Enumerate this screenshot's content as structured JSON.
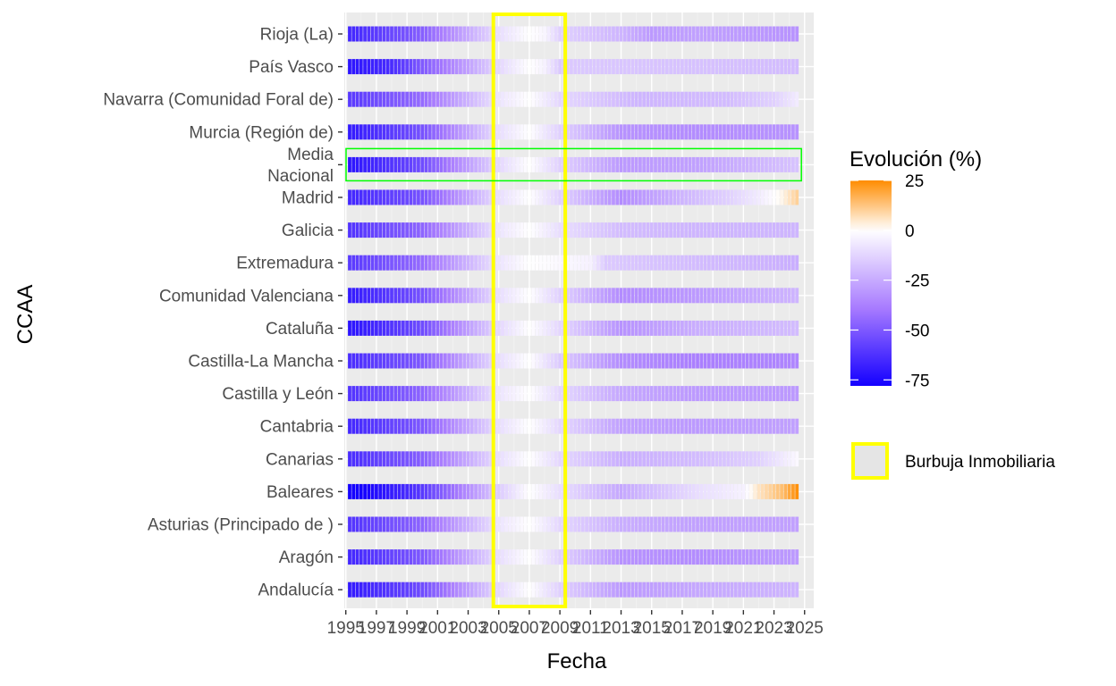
{
  "chart_data": {
    "type": "heatmap",
    "xlabel": "Fecha",
    "ylabel": "CCAA",
    "x_ticks": [
      "1995",
      "1997",
      "1999",
      "2001",
      "2003",
      "2005",
      "2007",
      "2009",
      "2011",
      "2013",
      "2015",
      "2017",
      "2019",
      "2021",
      "2023",
      "2025"
    ],
    "xlim": [
      1994.9,
      2025.6
    ],
    "x_start": 1995.25,
    "x_end": 2024.5,
    "x_step": 0.25,
    "categories": [
      "Rioja (La)",
      "País Vasco",
      "Navarra (Comunidad Foral de)",
      "Murcia (Región de)",
      "Media\nNacional",
      "Madrid",
      "Galicia",
      "Extremadura",
      "Comunidad Valenciana",
      "Cataluña",
      "Castilla-La Mancha",
      "Castilla y León",
      "Cantabria",
      "Canarias",
      "Baleares",
      "Asturias (Principado de )",
      "Aragón",
      "Andalucía"
    ],
    "category_lines": [
      [
        "Rioja (La)"
      ],
      [
        "País Vasco"
      ],
      [
        "Navarra (Comunidad Foral de)"
      ],
      [
        "Murcia (Región de)"
      ],
      [
        "Media",
        "Nacional"
      ],
      [
        "Madrid"
      ],
      [
        "Galicia"
      ],
      [
        "Extremadura"
      ],
      [
        "Comunidad Valenciana"
      ],
      [
        "Cataluña"
      ],
      [
        "Castilla-La Mancha"
      ],
      [
        "Castilla y León"
      ],
      [
        "Cantabria"
      ],
      [
        "Canarias"
      ],
      [
        "Baleares"
      ],
      [
        "Asturias (Principado de )"
      ],
      [
        "Aragón"
      ],
      [
        "Andalucía"
      ]
    ],
    "series": [
      {
        "name": "Rioja (La)",
        "knots": [
          [
            1995.25,
            -66
          ],
          [
            2000,
            -48
          ],
          [
            2005,
            -10
          ],
          [
            2007,
            0
          ],
          [
            2008,
            -3
          ],
          [
            2009,
            -14
          ],
          [
            2013,
            -22
          ],
          [
            2015,
            -30
          ],
          [
            2018,
            -28
          ],
          [
            2024.5,
            -32
          ]
        ]
      },
      {
        "name": "País Vasco",
        "knots": [
          [
            1995.25,
            -72
          ],
          [
            1998,
            -64
          ],
          [
            2003,
            -28
          ],
          [
            2005,
            -12
          ],
          [
            2007,
            0
          ],
          [
            2008,
            -4
          ],
          [
            2009,
            -16
          ],
          [
            2024.5,
            -20
          ]
        ]
      },
      {
        "name": "Navarra (Comunidad Foral de)",
        "knots": [
          [
            1995.25,
            -60
          ],
          [
            2000,
            -44
          ],
          [
            2005,
            -8
          ],
          [
            2007,
            0
          ],
          [
            2009,
            -12
          ],
          [
            2014,
            -22
          ],
          [
            2020,
            -20
          ],
          [
            2023,
            -14
          ],
          [
            2024.5,
            -6
          ]
        ]
      },
      {
        "name": "Murcia (Región de)",
        "knots": [
          [
            1995.25,
            -70
          ],
          [
            2000,
            -52
          ],
          [
            2005,
            -10
          ],
          [
            2007,
            0
          ],
          [
            2009,
            -14
          ],
          [
            2013,
            -32
          ],
          [
            2018,
            -34
          ],
          [
            2024.5,
            -32
          ]
        ]
      },
      {
        "name": "Media Nacional",
        "knots": [
          [
            1995.25,
            -72
          ],
          [
            2000,
            -54
          ],
          [
            2005,
            -12
          ],
          [
            2007,
            0
          ],
          [
            2009,
            -14
          ],
          [
            2013,
            -30
          ],
          [
            2018,
            -28
          ],
          [
            2024.5,
            -18
          ]
        ]
      },
      {
        "name": "Madrid",
        "knots": [
          [
            1995.25,
            -66
          ],
          [
            2000,
            -52
          ],
          [
            2005,
            -10
          ],
          [
            2007,
            0
          ],
          [
            2009,
            -14
          ],
          [
            2013,
            -34
          ],
          [
            2017,
            -22
          ],
          [
            2020,
            -14
          ],
          [
            2022,
            -6
          ],
          [
            2023.5,
            2
          ],
          [
            2024.5,
            10
          ]
        ]
      },
      {
        "name": "Galicia",
        "knots": [
          [
            1995.25,
            -62
          ],
          [
            2000,
            -46
          ],
          [
            2005,
            -8
          ],
          [
            2007,
            0
          ],
          [
            2009,
            -10
          ],
          [
            2013,
            -20
          ],
          [
            2018,
            -22
          ],
          [
            2024.5,
            -22
          ]
        ]
      },
      {
        "name": "Extremadura",
        "knots": [
          [
            1995.25,
            -60
          ],
          [
            2000,
            -44
          ],
          [
            2005,
            -8
          ],
          [
            2007,
            0
          ],
          [
            2011,
            -4
          ],
          [
            2012,
            -16
          ],
          [
            2018,
            -20
          ],
          [
            2024.5,
            -24
          ]
        ]
      },
      {
        "name": "Comunidad Valenciana",
        "knots": [
          [
            1995.25,
            -70
          ],
          [
            2000,
            -52
          ],
          [
            2005,
            -10
          ],
          [
            2007,
            0
          ],
          [
            2009,
            -14
          ],
          [
            2013,
            -34
          ],
          [
            2018,
            -30
          ],
          [
            2024.5,
            -22
          ]
        ]
      },
      {
        "name": "Cataluña",
        "knots": [
          [
            1995.25,
            -72
          ],
          [
            2000,
            -54
          ],
          [
            2005,
            -12
          ],
          [
            2007,
            0
          ],
          [
            2009,
            -12
          ],
          [
            2013,
            -32
          ],
          [
            2018,
            -24
          ],
          [
            2024.5,
            -20
          ]
        ]
      },
      {
        "name": "Castilla-La Mancha",
        "knots": [
          [
            1995.25,
            -64
          ],
          [
            2000,
            -50
          ],
          [
            2005,
            -10
          ],
          [
            2007,
            0
          ],
          [
            2009,
            -16
          ],
          [
            2013,
            -34
          ],
          [
            2018,
            -38
          ],
          [
            2024.5,
            -36
          ]
        ]
      },
      {
        "name": "Castilla y León",
        "knots": [
          [
            1995.25,
            -62
          ],
          [
            2000,
            -46
          ],
          [
            2005,
            -8
          ],
          [
            2007,
            0
          ],
          [
            2009,
            -12
          ],
          [
            2013,
            -26
          ],
          [
            2018,
            -30
          ],
          [
            2024.5,
            -30
          ]
        ]
      },
      {
        "name": "Cantabria",
        "knots": [
          [
            1995.25,
            -66
          ],
          [
            2000,
            -50
          ],
          [
            2005,
            -10
          ],
          [
            2007,
            0
          ],
          [
            2009,
            -12
          ],
          [
            2013,
            -28
          ],
          [
            2018,
            -30
          ],
          [
            2024.5,
            -28
          ]
        ]
      },
      {
        "name": "Canarias",
        "knots": [
          [
            1995.25,
            -64
          ],
          [
            2000,
            -48
          ],
          [
            2005,
            -10
          ],
          [
            2007,
            0
          ],
          [
            2009,
            -12
          ],
          [
            2013,
            -24
          ],
          [
            2018,
            -20
          ],
          [
            2022,
            -14
          ],
          [
            2024.5,
            -2
          ]
        ]
      },
      {
        "name": "Baleares",
        "knots": [
          [
            1995.25,
            -82
          ],
          [
            2000,
            -60
          ],
          [
            2005,
            -16
          ],
          [
            2007,
            0
          ],
          [
            2009,
            -10
          ],
          [
            2013,
            -26
          ],
          [
            2018,
            -10
          ],
          [
            2021,
            -4
          ],
          [
            2022,
            6
          ],
          [
            2023.5,
            14
          ],
          [
            2024.5,
            24
          ]
        ]
      },
      {
        "name": "Asturias (Principado de )",
        "knots": [
          [
            1995.25,
            -62
          ],
          [
            2000,
            -46
          ],
          [
            2005,
            -8
          ],
          [
            2007,
            0
          ],
          [
            2009,
            -12
          ],
          [
            2013,
            -24
          ],
          [
            2018,
            -28
          ],
          [
            2024.5,
            -28
          ]
        ]
      },
      {
        "name": "Aragón",
        "knots": [
          [
            1995.25,
            -66
          ],
          [
            2000,
            -50
          ],
          [
            2005,
            -10
          ],
          [
            2007,
            0
          ],
          [
            2009,
            -14
          ],
          [
            2013,
            -32
          ],
          [
            2018,
            -34
          ],
          [
            2024.5,
            -30
          ]
        ]
      },
      {
        "name": "Andalucía",
        "knots": [
          [
            1995.25,
            -70
          ],
          [
            2000,
            -54
          ],
          [
            2005,
            -12
          ],
          [
            2007,
            0
          ],
          [
            2009,
            -14
          ],
          [
            2013,
            -30
          ],
          [
            2018,
            -26
          ],
          [
            2024.5,
            -22
          ]
        ]
      }
    ],
    "colorbar": {
      "title": "Evolución (%)",
      "ticks": [
        "25",
        "0",
        "-25",
        "-50",
        "-75"
      ],
      "range": [
        -78,
        25
      ],
      "colors": {
        "low": "#1400ff",
        "mid_low": "#a87bff",
        "zero": "#ffffff",
        "high": "#ff8c00"
      }
    },
    "highlight_rect": {
      "x": [
        2005,
        2009
      ],
      "label": "Burbuja Inmobiliaria",
      "color": "#ffff00"
    },
    "outline_category": "Media Nacional",
    "outline_color": "#00ff00",
    "panel_color": "#ebebeb",
    "grid": true
  }
}
